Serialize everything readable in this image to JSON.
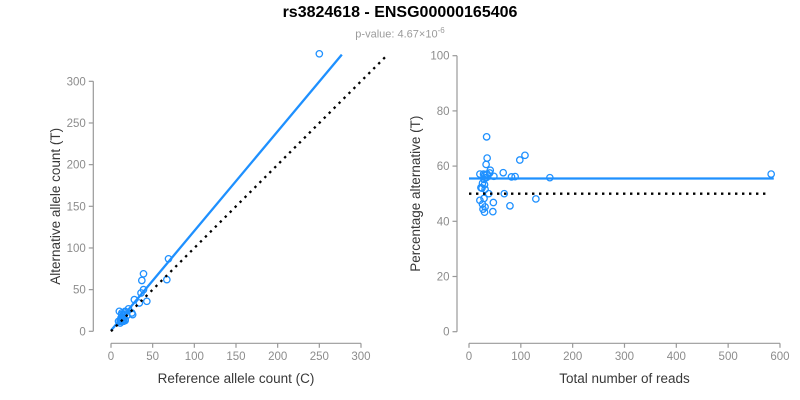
{
  "header": {
    "title": "rs3824618 - ENSG00000165406",
    "pvalue_prefix": "p-value: 4.67×10",
    "pvalue_exponent": "-6"
  },
  "colors": {
    "point_blue": "#1E90FF",
    "fit_line_blue": "#1E90FF",
    "reference_line_black": "#000000",
    "tick_gray": "#8C8C8C",
    "axis_gray": "#999999",
    "axis_label_dark": "#383838"
  },
  "chart_data": [
    {
      "type": "scatter",
      "name": "allele-counts-scatter",
      "xlabel": "Reference allele count (C)",
      "ylabel": "Alternative allele count (T)",
      "xlim": [
        0,
        333
      ],
      "ylim": [
        0,
        340
      ],
      "xticks": [
        0,
        50,
        100,
        150,
        200,
        250,
        300
      ],
      "yticks": [
        0,
        50,
        100,
        150,
        200,
        250,
        300
      ],
      "grid": false,
      "legend": false,
      "points": [
        [
          10,
          24
        ],
        [
          13,
          22
        ],
        [
          13,
          20
        ],
        [
          17,
          24
        ],
        [
          9,
          12
        ],
        [
          12,
          16
        ],
        [
          13,
          17
        ],
        [
          15,
          20
        ],
        [
          17,
          23
        ],
        [
          21,
          27
        ],
        [
          28,
          38
        ],
        [
          36,
          46
        ],
        [
          39,
          50
        ],
        [
          69,
          87
        ],
        [
          13,
          16
        ],
        [
          15,
          19
        ],
        [
          12,
          14
        ],
        [
          14,
          16
        ],
        [
          12,
          13
        ],
        [
          15,
          16
        ],
        [
          11,
          12
        ],
        [
          19,
          19
        ],
        [
          34,
          34
        ],
        [
          11,
          10
        ],
        [
          15,
          14
        ],
        [
          25,
          22
        ],
        [
          14,
          12
        ],
        [
          17,
          14
        ],
        [
          15,
          12
        ],
        [
          17,
          13
        ],
        [
          26,
          20
        ],
        [
          43,
          36
        ],
        [
          67,
          62
        ],
        [
          37,
          61
        ],
        [
          39,
          69
        ],
        [
          250,
          333
        ]
      ],
      "lines": [
        {
          "name": "fit-line",
          "style": "solid",
          "color": "#1E90FF",
          "points": [
            [
              0,
              1
            ],
            [
              277,
              332
            ]
          ]
        },
        {
          "name": "identity-line",
          "style": "dotted",
          "color": "#000000",
          "points": [
            [
              0,
              0
            ],
            [
              332,
              332
            ]
          ]
        }
      ]
    },
    {
      "type": "scatter",
      "name": "percentage-vs-coverage-scatter",
      "xlabel": "Total number of reads",
      "ylabel": "Percentage alternative (T)",
      "xlim": [
        0,
        612
      ],
      "ylim": [
        0,
        104
      ],
      "xticks": [
        0,
        100,
        200,
        300,
        400,
        500,
        600
      ],
      "yticks": [
        0,
        20,
        40,
        60,
        80,
        100
      ],
      "grid": false,
      "legend": false,
      "points": [
        [
          34,
          70.6
        ],
        [
          35,
          62.9
        ],
        [
          33,
          60.6
        ],
        [
          41,
          58.5
        ],
        [
          21,
          57.1
        ],
        [
          28,
          57.1
        ],
        [
          30,
          56.7
        ],
        [
          35,
          57.1
        ],
        [
          40,
          57.5
        ],
        [
          48,
          56.3
        ],
        [
          66,
          57.6
        ],
        [
          82,
          56.1
        ],
        [
          89,
          56.2
        ],
        [
          156,
          55.8
        ],
        [
          29,
          55.2
        ],
        [
          34,
          55.9
        ],
        [
          26,
          53.8
        ],
        [
          30,
          53.3
        ],
        [
          25,
          52.0
        ],
        [
          31,
          51.6
        ],
        [
          23,
          52.2
        ],
        [
          38,
          50.0
        ],
        [
          68,
          50.0
        ],
        [
          21,
          47.6
        ],
        [
          29,
          48.3
        ],
        [
          47,
          46.8
        ],
        [
          26,
          46.2
        ],
        [
          31,
          45.2
        ],
        [
          27,
          44.4
        ],
        [
          30,
          43.3
        ],
        [
          46,
          43.5
        ],
        [
          79,
          45.6
        ],
        [
          129,
          48.1
        ],
        [
          98,
          62.2
        ],
        [
          108,
          63.9
        ],
        [
          583,
          57.1
        ]
      ],
      "lines": [
        {
          "name": "fit-line",
          "style": "solid",
          "color": "#1E90FF",
          "points": [
            [
              0,
              55.5
            ],
            [
              588,
              55.5
            ]
          ]
        },
        {
          "name": "reference-line",
          "style": "dotted",
          "color": "#000000",
          "points": [
            [
              0,
              50
            ],
            [
              580,
              50
            ]
          ]
        }
      ]
    }
  ]
}
